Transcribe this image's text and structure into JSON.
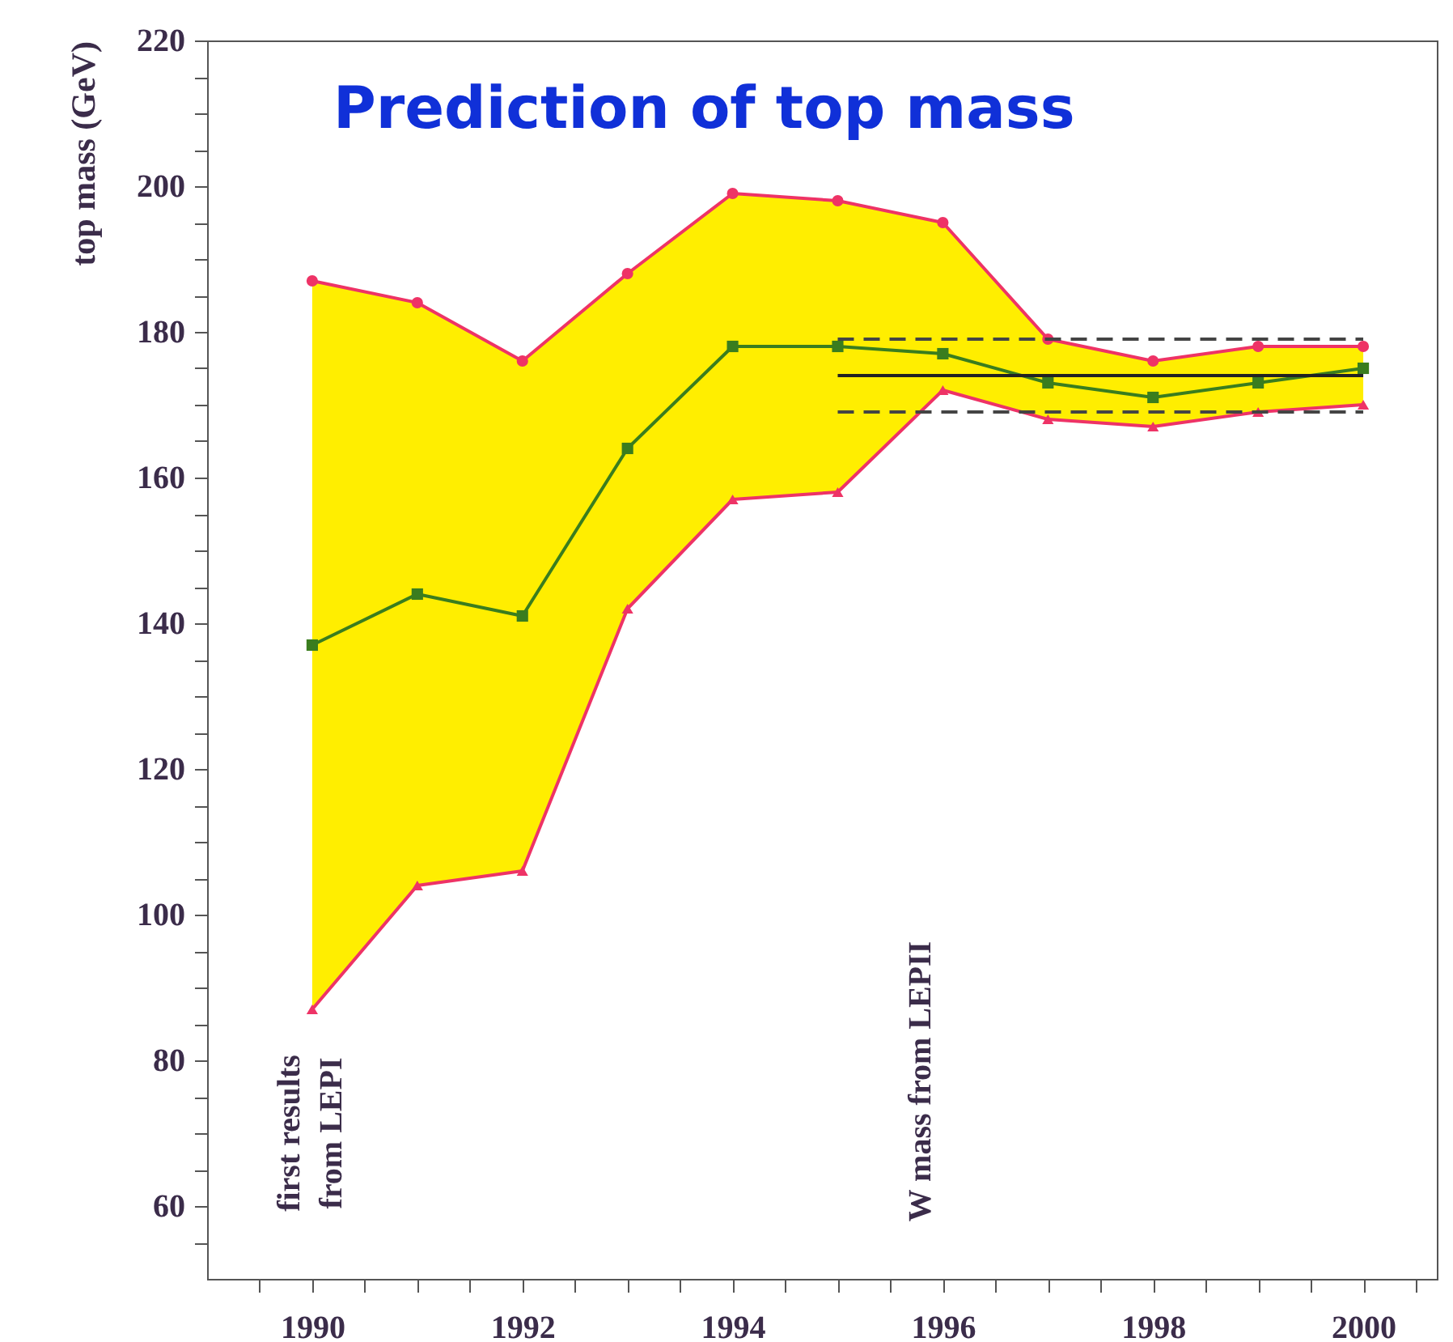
{
  "chart_data": {
    "type": "line",
    "title": "Prediction of top mass",
    "ylabel": "top mass (GeV)",
    "x": [
      1990,
      1991,
      1992,
      1993,
      1994,
      1995,
      1996,
      1997,
      1998,
      1999,
      2000
    ],
    "series": [
      {
        "color": "#3a7d1e",
        "marker": "square",
        "values": [
          137,
          144,
          141,
          164,
          178,
          178,
          177,
          173,
          171,
          173,
          175
        ],
        "lower": [
          87,
          104,
          106,
          142,
          157,
          158,
          172,
          168,
          167,
          169,
          170
        ],
        "upper": [
          187,
          184,
          176,
          188,
          199,
          198,
          195,
          179,
          176,
          178,
          178
        ]
      },
      {
        "color": "#ee3366",
        "marker": "circle",
        "values": [
          187,
          184,
          176,
          188,
          199,
          198,
          195,
          179,
          176,
          178,
          178
        ]
      },
      {
        "color": "#ee3366",
        "marker": "triangle",
        "values": [
          87,
          104,
          106,
          142,
          157,
          158,
          172,
          168,
          167,
          169,
          170
        ]
      },
      {
        "color": "#222222",
        "values": [
          null,
          null,
          null,
          null,
          null,
          174,
          174,
          174,
          174,
          174,
          174
        ],
        "line_style": "solid"
      },
      {
        "color": "#444444",
        "values": [
          null,
          null,
          null,
          null,
          null,
          179,
          179,
          179,
          179,
          179,
          179
        ],
        "line_style": "dashed"
      },
      {
        "color": "#444444",
        "values": [
          null,
          null,
          null,
          null,
          null,
          169,
          169,
          169,
          169,
          169,
          169
        ],
        "line_style": "dashed"
      }
    ],
    "annotations": [
      "first results\nfrom LEPI",
      "W mass from LEPII"
    ],
    "xlim": [
      1989,
      2000.7
    ],
    "xticks": [
      {
        "value": 1989.5,
        "label": null
      },
      1990,
      {
        "value": 1990.5,
        "label": null
      },
      {
        "value": 1991,
        "label": null
      },
      {
        "value": 1991.5,
        "label": null
      },
      1992,
      {
        "value": 1992.5,
        "label": null
      },
      {
        "value": 1993,
        "label": null
      },
      {
        "value": 1993.5,
        "label": null
      },
      1994,
      {
        "value": 1994.5,
        "label": null
      },
      {
        "value": 1995,
        "label": null
      },
      {
        "value": 1995.5,
        "label": null
      },
      1996,
      {
        "value": 1996.5,
        "label": null
      },
      {
        "value": 1997,
        "label": null
      },
      {
        "value": 1997.5,
        "label": null
      },
      1998,
      {
        "value": 1998.5,
        "label": null
      },
      {
        "value": 1999,
        "label": null
      },
      {
        "value": 1999.5,
        "label": null
      },
      2000,
      {
        "value": 2000.5,
        "label": null
      }
    ],
    "ylim": [
      50,
      220
    ],
    "yticks": [
      {
        "value": 55,
        "label": null
      },
      60,
      {
        "value": 65,
        "label": null
      },
      {
        "value": 70,
        "label": null
      },
      {
        "value": 75,
        "label": null
      },
      80,
      {
        "value": 85,
        "label": null
      },
      {
        "value": 90,
        "label": null
      },
      {
        "value": 95,
        "label": null
      },
      100,
      {
        "value": 105,
        "label": null
      },
      {
        "value": 110,
        "label": null
      },
      {
        "value": 115,
        "label": null
      },
      120,
      {
        "value": 125,
        "label": null
      },
      {
        "value": 130,
        "label": null
      },
      {
        "value": 135,
        "label": null
      },
      140,
      {
        "value": 145,
        "label": null
      },
      {
        "value": 150,
        "label": null
      },
      {
        "value": 155,
        "label": null
      },
      160,
      {
        "value": 165,
        "label": null
      },
      {
        "value": 170,
        "label": null
      },
      {
        "value": 175,
        "label": null
      },
      180,
      {
        "value": 185,
        "label": null
      },
      {
        "value": 190,
        "label": null
      },
      {
        "value": 195,
        "label": null
      },
      200,
      {
        "value": 205,
        "label": null
      },
      {
        "value": 210,
        "label": null
      },
      {
        "value": 215,
        "label": null
      },
      220
    ],
    "grid": false
  }
}
